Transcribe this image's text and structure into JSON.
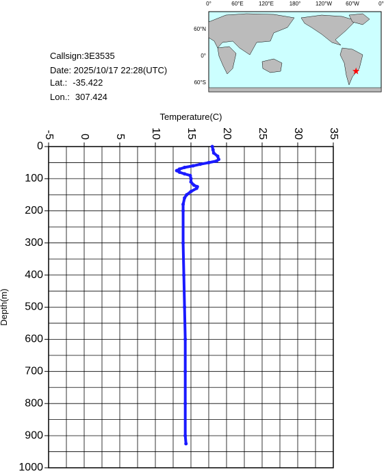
{
  "info": {
    "callsign": "Callsign:3E3535",
    "date": "Date:  2025/10/17 22:28(UTC)",
    "lat_label": "Lat.:",
    "lat": -35.422,
    "lon_label": "Lon.:",
    "lon": 307.424
  },
  "map": {
    "xlabels": [
      {
        "value": 0,
        "label": "0°"
      },
      {
        "value": 60,
        "label": "60°E"
      },
      {
        "value": 120,
        "label": "120°E"
      },
      {
        "value": 180,
        "label": "180°"
      },
      {
        "value": 240,
        "label": "120°W"
      },
      {
        "value": 300,
        "label": "60°W"
      },
      {
        "value": 360,
        "label": "0°"
      }
    ],
    "ylabels": [
      {
        "value": 60,
        "label": "60°N"
      },
      {
        "value": 0,
        "label": "0°"
      },
      {
        "value": -60,
        "label": "60°S"
      }
    ]
  },
  "chart_data": {
    "type": "line",
    "x_label": "Temperature(C)",
    "y_label": "Depth(m)",
    "color": "#1a1aff",
    "x": [
      18.0,
      18.1,
      18.2,
      18.75,
      18.9,
      18.6,
      17.5,
      16.3,
      15.3,
      14.1,
      13.4,
      13.0,
      13.4,
      14.1,
      14.9,
      15.0,
      15.0,
      15.4,
      15.9,
      15.8,
      15.0,
      14.4,
      14.1,
      13.9,
      13.9,
      13.9,
      14.0,
      14.1,
      14.2,
      14.2,
      14.2,
      14.2,
      14.3
    ],
    "values": [
      0,
      10,
      20,
      30,
      40,
      45,
      50,
      55,
      60,
      65,
      70,
      75,
      80,
      85,
      90,
      100,
      110,
      120,
      125,
      130,
      140,
      150,
      160,
      180,
      200,
      300,
      400,
      500,
      600,
      700,
      800,
      900,
      925
    ],
    "xlim": [
      -5,
      35
    ],
    "xticks": [
      -5,
      0,
      5,
      10,
      15,
      20,
      25,
      30,
      35
    ],
    "ylim": [
      0,
      1000
    ],
    "yticks": [
      0,
      100,
      200,
      300,
      400,
      500,
      600,
      700,
      800,
      900,
      1000
    ],
    "xgrid": [
      -2.5,
      0,
      2.5,
      5,
      7.5,
      10,
      12.5,
      15,
      17.5,
      20,
      22.5,
      25,
      27.5,
      30,
      32.5
    ],
    "ygrid": [
      50,
      100,
      150,
      200,
      250,
      300,
      350,
      400,
      450,
      500,
      550,
      600,
      650,
      700,
      750,
      800,
      850,
      900,
      950
    ],
    "y_inverted": true,
    "grid": true
  }
}
